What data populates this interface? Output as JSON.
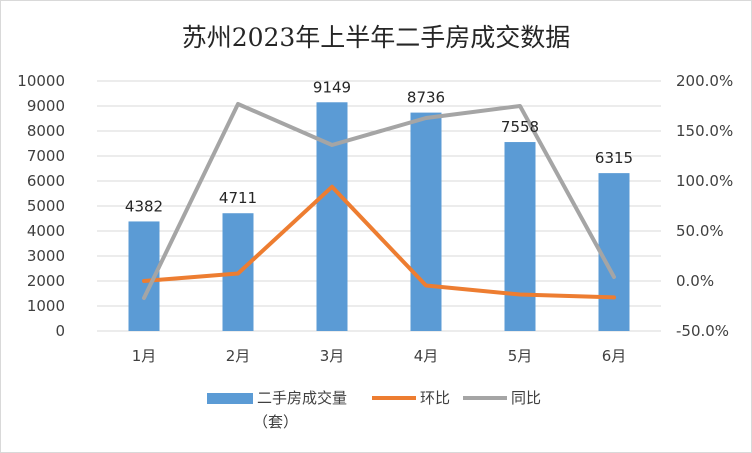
{
  "chart_data": {
    "type": "bar",
    "title": "苏州2023年上半年二手房成交数据",
    "categories": [
      "1月",
      "2月",
      "3月",
      "4月",
      "5月",
      "6月"
    ],
    "series": [
      {
        "name": "二手房成交量（套）",
        "type": "bar",
        "axis": "left",
        "color": "#5b9bd5",
        "values": [
          4382,
          4711,
          9149,
          8736,
          7558,
          6315
        ]
      },
      {
        "name": "环比",
        "type": "line",
        "axis": "right",
        "color": "#ed7d31",
        "values": [
          0.0,
          7.5,
          94.2,
          -4.5,
          -13.5,
          -16.4
        ]
      },
      {
        "name": "同比",
        "type": "line",
        "axis": "right",
        "color": "#a5a5a5",
        "values": [
          -17,
          177,
          136,
          163,
          175,
          4
        ]
      }
    ],
    "y_left": {
      "min": 0,
      "max": 10000,
      "step": 1000,
      "tick_labels": [
        "0",
        "1000",
        "2000",
        "3000",
        "4000",
        "5000",
        "6000",
        "7000",
        "8000",
        "9000",
        "10000"
      ]
    },
    "y_right": {
      "min": -50,
      "max": 200,
      "step": 50,
      "tick_labels": [
        "-50.0%",
        "0.0%",
        "50.0%",
        "100.0%",
        "150.0%",
        "200.0%"
      ]
    },
    "data_labels": [
      "4382",
      "4711",
      "9149",
      "8736",
      "7558",
      "6315"
    ],
    "legend": {
      "position": "bottom",
      "items": [
        "二手房成交量",
        "（套）",
        "环比",
        "同比"
      ]
    },
    "grid": true
  }
}
